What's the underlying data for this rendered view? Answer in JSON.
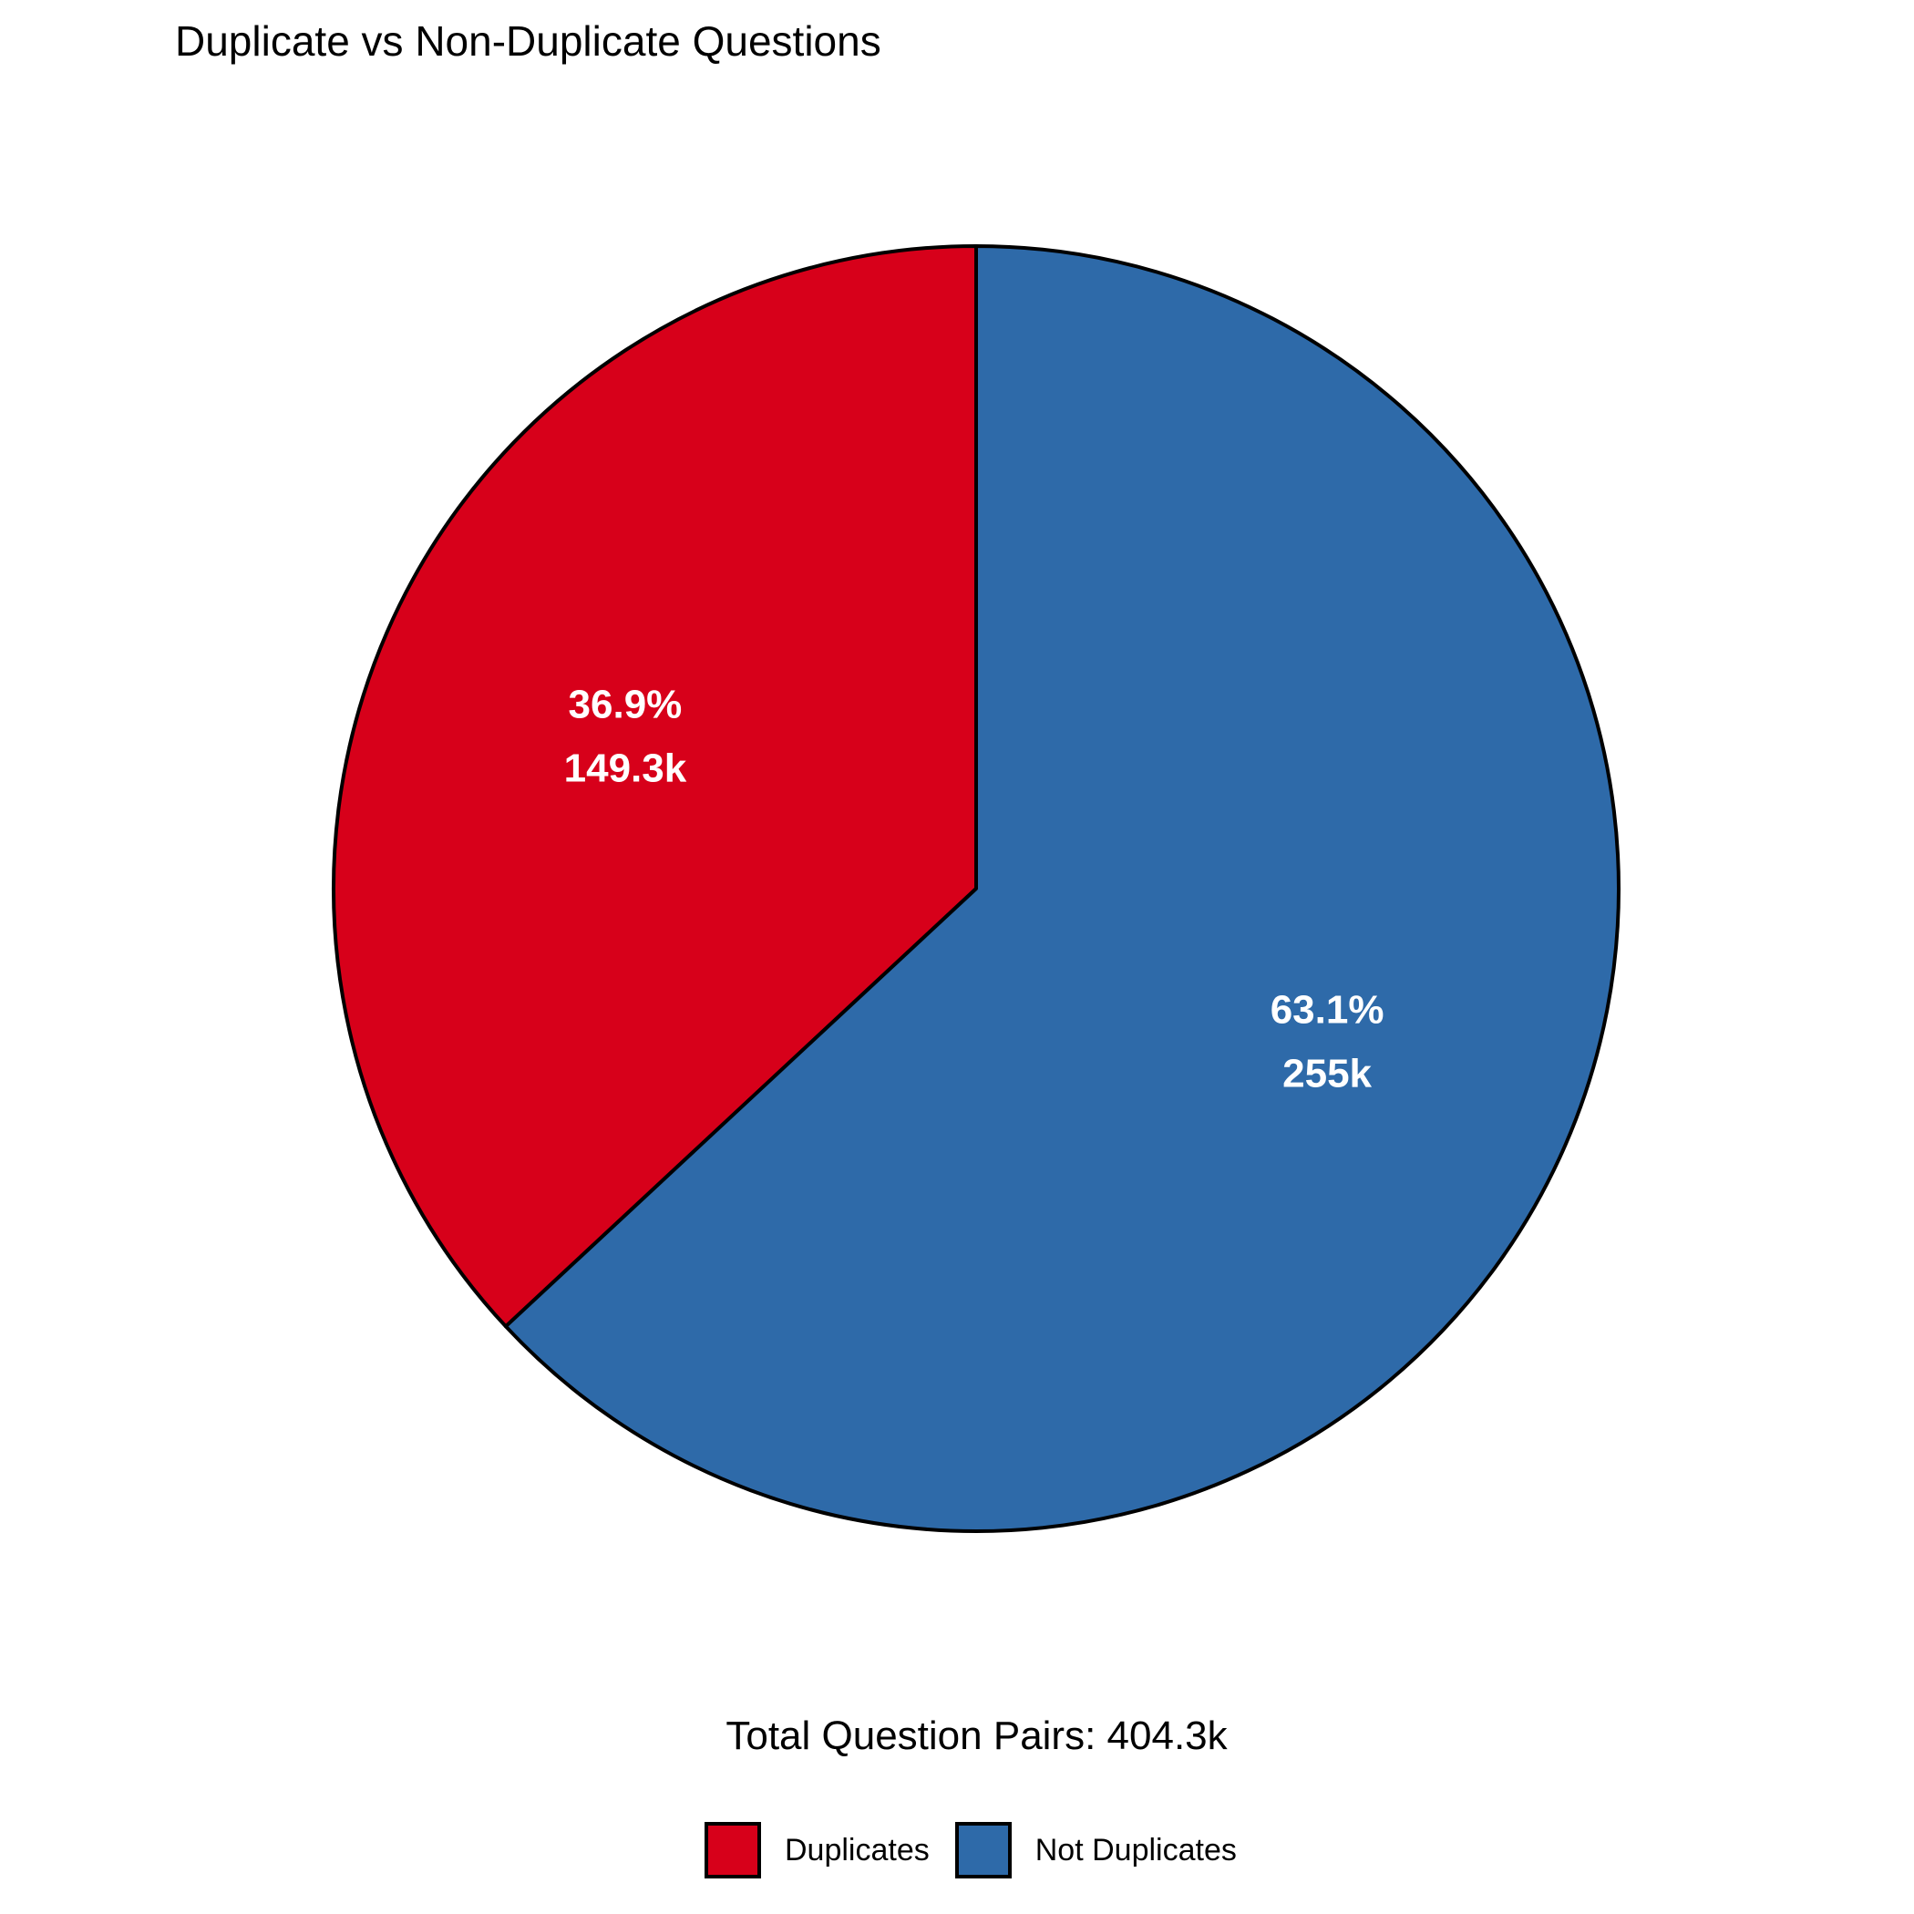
{
  "chart_data": {
    "type": "pie",
    "title": "Duplicate vs Non-Duplicate Questions",
    "caption": "Total Question Pairs: 404.3k",
    "start_angle": "12 o'clock",
    "direction": "counterclockwise",
    "legend_position": "bottom",
    "slices": [
      {
        "name": "Duplicates",
        "value": 149.3,
        "percent_label": "36.9%",
        "value_label": "149.3k",
        "color": "#D7001A"
      },
      {
        "name": "Not Duplicates",
        "value": 255,
        "percent_label": "63.1%",
        "value_label": "255k",
        "color": "#2E6AA9"
      }
    ]
  }
}
